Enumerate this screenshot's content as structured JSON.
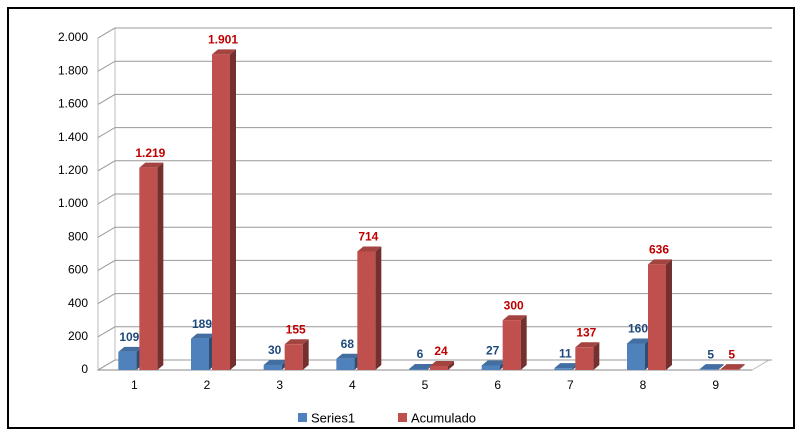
{
  "chart_data": {
    "type": "bar3d",
    "categories": [
      "1",
      "2",
      "3",
      "4",
      "5",
      "6",
      "7",
      "8",
      "9"
    ],
    "series": [
      {
        "name": "Series1",
        "color": "#4f81bd",
        "label_color": "#1f497d",
        "values": [
          109,
          189,
          30,
          68,
          6,
          27,
          11,
          160,
          5
        ]
      },
      {
        "name": "Acumulado",
        "color": "#c0504d",
        "label_color": "#c00000",
        "values": [
          1219,
          1901,
          155,
          714,
          24,
          300,
          137,
          636,
          5
        ],
        "value_labels": [
          "1.219",
          "1.901",
          "155",
          "714",
          "24",
          "300",
          "137",
          "636",
          "5"
        ]
      }
    ],
    "ylim": [
      0,
      2000
    ],
    "yticks": [
      0,
      200,
      400,
      600,
      800,
      {
        "value": 1000,
        "label": "1.000"
      },
      {
        "value": 1200,
        "label": "1.200"
      },
      {
        "value": 1400,
        "label": "1.400"
      },
      {
        "value": 1600,
        "label": "1.600"
      },
      {
        "value": 1800,
        "label": "1.800"
      },
      {
        "value": 2000,
        "label": "2.000"
      }
    ],
    "grid": true,
    "legend": "bottom"
  }
}
